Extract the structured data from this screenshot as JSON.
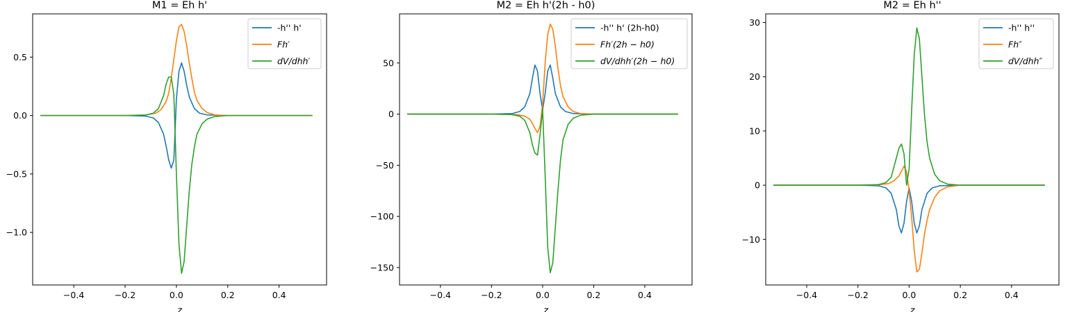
{
  "chart_data": [
    {
      "type": "line",
      "title": "M1 = Eh h'",
      "xlabel": "z",
      "ylabel": "",
      "xlim": [
        -0.56,
        0.585
      ],
      "ylim": [
        -1.45,
        0.87
      ],
      "xticks": [
        -0.4,
        -0.2,
        0.0,
        0.2,
        0.4
      ],
      "xtick_labels": [
        "−0.4",
        "−0.2",
        "0.0",
        "0.2",
        "0.4"
      ],
      "yticks": [
        -1.0,
        -0.5,
        0.0,
        0.5
      ],
      "ytick_labels": [
        "−1.0",
        "−0.5",
        "0.0",
        "0.5"
      ],
      "legend_position": "top-right",
      "series": [
        {
          "name": "-h'' h'",
          "color": "#1f77b4",
          "points": [
            [
              -0.53,
              0
            ],
            [
              -0.2,
              0
            ],
            [
              -0.12,
              -0.005
            ],
            [
              -0.09,
              -0.02
            ],
            [
              -0.07,
              -0.06
            ],
            [
              -0.05,
              -0.16
            ],
            [
              -0.04,
              -0.26
            ],
            [
              -0.03,
              -0.38
            ],
            [
              -0.02,
              -0.45
            ],
            [
              -0.01,
              -0.38
            ],
            [
              0.0,
              0.14
            ],
            [
              0.01,
              0.38
            ],
            [
              0.02,
              0.45
            ],
            [
              0.03,
              0.38
            ],
            [
              0.04,
              0.26
            ],
            [
              0.05,
              0.16
            ],
            [
              0.07,
              0.06
            ],
            [
              0.09,
              0.02
            ],
            [
              0.12,
              0.005
            ],
            [
              0.2,
              0
            ],
            [
              0.53,
              0
            ]
          ]
        },
        {
          "name": "Fh′",
          "color": "#ff7f0e",
          "points": [
            [
              -0.53,
              0
            ],
            [
              -0.2,
              0
            ],
            [
              -0.12,
              0.005
            ],
            [
              -0.08,
              0.02
            ],
            [
              -0.06,
              0.05
            ],
            [
              -0.04,
              0.12
            ],
            [
              -0.03,
              0.19
            ],
            [
              -0.02,
              0.32
            ],
            [
              -0.01,
              0.48
            ],
            [
              0.0,
              0.64
            ],
            [
              0.01,
              0.76
            ],
            [
              0.02,
              0.78
            ],
            [
              0.03,
              0.72
            ],
            [
              0.04,
              0.6
            ],
            [
              0.05,
              0.45
            ],
            [
              0.06,
              0.32
            ],
            [
              0.07,
              0.2
            ],
            [
              0.08,
              0.13
            ],
            [
              0.1,
              0.06
            ],
            [
              0.12,
              0.025
            ],
            [
              0.15,
              0.005
            ],
            [
              0.2,
              0
            ],
            [
              0.53,
              0
            ]
          ]
        },
        {
          "name": "dV/dhh′",
          "color": "#2ca02c",
          "points": [
            [
              -0.53,
              0
            ],
            [
              -0.2,
              0
            ],
            [
              -0.12,
              0.004
            ],
            [
              -0.09,
              0.02
            ],
            [
              -0.07,
              0.06
            ],
            [
              -0.05,
              0.17
            ],
            [
              -0.04,
              0.27
            ],
            [
              -0.03,
              0.33
            ],
            [
              -0.02,
              0.33
            ],
            [
              -0.01,
              0.18
            ],
            [
              0.0,
              -0.5
            ],
            [
              0.01,
              -1.1
            ],
            [
              0.02,
              -1.35
            ],
            [
              0.03,
              -1.25
            ],
            [
              0.04,
              -0.95
            ],
            [
              0.05,
              -0.65
            ],
            [
              0.06,
              -0.42
            ],
            [
              0.07,
              -0.27
            ],
            [
              0.08,
              -0.16
            ],
            [
              0.1,
              -0.07
            ],
            [
              0.12,
              -0.03
            ],
            [
              0.15,
              -0.008
            ],
            [
              0.2,
              0
            ],
            [
              0.53,
              0
            ]
          ]
        }
      ]
    },
    {
      "type": "line",
      "title": "M2 = Eh h'(2h - h0)",
      "xlabel": "z",
      "ylabel": "",
      "xlim": [
        -0.56,
        0.585
      ],
      "ylim": [
        -167,
        98
      ],
      "xticks": [
        -0.4,
        -0.2,
        0.0,
        0.2,
        0.4
      ],
      "xtick_labels": [
        "−0.4",
        "−0.2",
        "0.0",
        "0.2",
        "0.4"
      ],
      "yticks": [
        -150,
        -100,
        -50,
        0,
        50
      ],
      "ytick_labels": [
        "−150",
        "−100",
        "−50",
        "0",
        "50"
      ],
      "legend_position": "top-right",
      "series": [
        {
          "name": "-h'' h' (2h-h0)",
          "color": "#1f77b4",
          "points": [
            [
              -0.53,
              0
            ],
            [
              -0.2,
              0
            ],
            [
              -0.12,
              0.5
            ],
            [
              -0.09,
              2.5
            ],
            [
              -0.07,
              7
            ],
            [
              -0.05,
              20
            ],
            [
              -0.04,
              35
            ],
            [
              -0.03,
              48
            ],
            [
              -0.02,
              42
            ],
            [
              -0.01,
              20
            ],
            [
              0.0,
              4
            ],
            [
              0.01,
              20
            ],
            [
              0.02,
              42
            ],
            [
              0.03,
              48
            ],
            [
              0.04,
              35
            ],
            [
              0.05,
              20
            ],
            [
              0.07,
              7
            ],
            [
              0.09,
              2.5
            ],
            [
              0.12,
              0.5
            ],
            [
              0.2,
              0
            ],
            [
              0.53,
              0
            ]
          ]
        },
        {
          "name": "Fh′(2h − h0)",
          "color": "#ff7f0e",
          "points": [
            [
              -0.53,
              0
            ],
            [
              -0.2,
              0
            ],
            [
              -0.1,
              -0.5
            ],
            [
              -0.07,
              -2
            ],
            [
              -0.05,
              -5
            ],
            [
              -0.04,
              -9
            ],
            [
              -0.03,
              -14
            ],
            [
              -0.02,
              -18
            ],
            [
              -0.01,
              -12
            ],
            [
              0.0,
              10
            ],
            [
              0.01,
              50
            ],
            [
              0.02,
              78
            ],
            [
              0.03,
              88
            ],
            [
              0.04,
              83
            ],
            [
              0.05,
              66
            ],
            [
              0.06,
              45
            ],
            [
              0.07,
              28
            ],
            [
              0.08,
              17
            ],
            [
              0.1,
              7
            ],
            [
              0.12,
              2.5
            ],
            [
              0.15,
              0.5
            ],
            [
              0.2,
              0
            ],
            [
              0.53,
              0
            ]
          ]
        },
        {
          "name": "dV/dhh′(2h − h0)",
          "color": "#2ca02c",
          "points": [
            [
              -0.53,
              0
            ],
            [
              -0.2,
              0
            ],
            [
              -0.12,
              -0.5
            ],
            [
              -0.09,
              -2
            ],
            [
              -0.07,
              -6
            ],
            [
              -0.05,
              -18
            ],
            [
              -0.04,
              -30
            ],
            [
              -0.03,
              -38
            ],
            [
              -0.02,
              -40
            ],
            [
              -0.01,
              -20
            ],
            [
              0.0,
              5
            ],
            [
              0.01,
              -60
            ],
            [
              0.02,
              -130
            ],
            [
              0.03,
              -155
            ],
            [
              0.04,
              -145
            ],
            [
              0.05,
              -110
            ],
            [
              0.06,
              -75
            ],
            [
              0.07,
              -45
            ],
            [
              0.08,
              -25
            ],
            [
              0.1,
              -10
            ],
            [
              0.12,
              -4
            ],
            [
              0.15,
              -1
            ],
            [
              0.2,
              0
            ],
            [
              0.53,
              0
            ]
          ]
        }
      ]
    },
    {
      "type": "line",
      "title": "M2 = Eh h''",
      "xlabel": "z",
      "ylabel": "",
      "xlim": [
        -0.56,
        0.585
      ],
      "ylim": [
        -18.4,
        31.6
      ],
      "xticks": [
        -0.4,
        -0.2,
        0.0,
        0.2,
        0.4
      ],
      "xtick_labels": [
        "−0.4",
        "−0.2",
        "0.0",
        "0.2",
        "0.4"
      ],
      "yticks": [
        -10,
        0,
        10,
        20,
        30
      ],
      "ytick_labels": [
        "−10",
        "0",
        "10",
        "20",
        "30"
      ],
      "legend_position": "top-right",
      "series": [
        {
          "name": "-h'' h''",
          "color": "#1f77b4",
          "points": [
            [
              -0.53,
              0
            ],
            [
              -0.2,
              0
            ],
            [
              -0.12,
              -0.1
            ],
            [
              -0.09,
              -0.5
            ],
            [
              -0.07,
              -1.5
            ],
            [
              -0.05,
              -4.5
            ],
            [
              -0.04,
              -7.5
            ],
            [
              -0.03,
              -8.8
            ],
            [
              -0.02,
              -7
            ],
            [
              -0.01,
              -3
            ],
            [
              0.0,
              -0.5
            ],
            [
              0.01,
              -3
            ],
            [
              0.02,
              -7
            ],
            [
              0.03,
              -8.8
            ],
            [
              0.04,
              -7.5
            ],
            [
              0.05,
              -4.5
            ],
            [
              0.07,
              -1.5
            ],
            [
              0.09,
              -0.5
            ],
            [
              0.12,
              -0.1
            ],
            [
              0.2,
              0
            ],
            [
              0.53,
              0
            ]
          ]
        },
        {
          "name": "Fh″",
          "color": "#ff7f0e",
          "points": [
            [
              -0.53,
              0
            ],
            [
              -0.2,
              0
            ],
            [
              -0.12,
              0.05
            ],
            [
              -0.08,
              0.3
            ],
            [
              -0.06,
              0.8
            ],
            [
              -0.04,
              1.7
            ],
            [
              -0.03,
              2.6
            ],
            [
              -0.02,
              3.5
            ],
            [
              -0.01,
              2.5
            ],
            [
              0.0,
              -1
            ],
            [
              0.01,
              -6
            ],
            [
              0.02,
              -12
            ],
            [
              0.03,
              -16
            ],
            [
              0.04,
              -15.5
            ],
            [
              0.05,
              -12.5
            ],
            [
              0.06,
              -9
            ],
            [
              0.07,
              -6.5
            ],
            [
              0.08,
              -4.5
            ],
            [
              0.1,
              -2.2
            ],
            [
              0.12,
              -1
            ],
            [
              0.15,
              -0.3
            ],
            [
              0.2,
              0
            ],
            [
              0.53,
              0
            ]
          ]
        },
        {
          "name": "dV/dhh″",
          "color": "#2ca02c",
          "points": [
            [
              -0.53,
              0
            ],
            [
              -0.2,
              0
            ],
            [
              -0.12,
              0.1
            ],
            [
              -0.09,
              0.5
            ],
            [
              -0.07,
              1.5
            ],
            [
              -0.05,
              5
            ],
            [
              -0.04,
              6.8
            ],
            [
              -0.03,
              7.6
            ],
            [
              -0.02,
              5.8
            ],
            [
              -0.01,
              0
            ],
            [
              0.0,
              3
            ],
            [
              0.01,
              14
            ],
            [
              0.02,
              24
            ],
            [
              0.03,
              29
            ],
            [
              0.04,
              27
            ],
            [
              0.05,
              20
            ],
            [
              0.06,
              13
            ],
            [
              0.07,
              8
            ],
            [
              0.08,
              5
            ],
            [
              0.1,
              2
            ],
            [
              0.12,
              0.8
            ],
            [
              0.15,
              0.2
            ],
            [
              0.2,
              0
            ],
            [
              0.53,
              0
            ]
          ]
        }
      ]
    }
  ]
}
